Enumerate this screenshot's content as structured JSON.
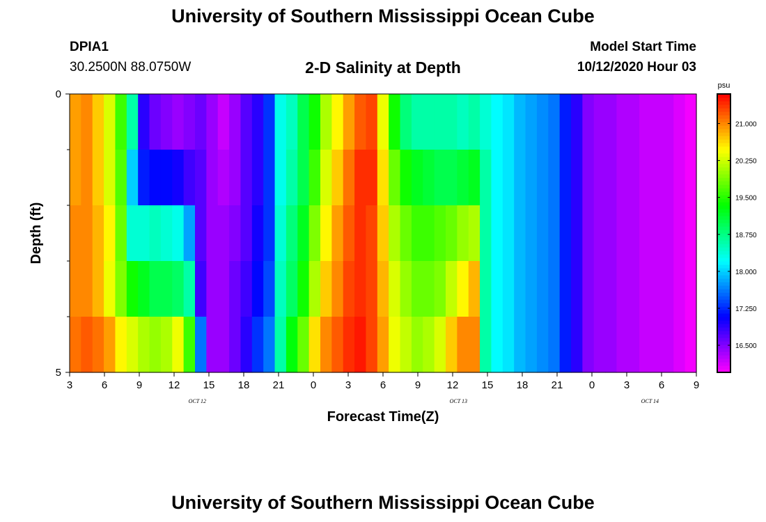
{
  "header": {
    "title": "University of Southern Mississippi Ocean Cube",
    "station_id": "DPIA1",
    "station_coords": "30.2500N 88.0750W",
    "subtitle": "2-D Salinity at Depth",
    "model_start_label": "Model Start Time",
    "model_start_value": "10/12/2020 Hour 03"
  },
  "footer": {
    "title": "University of Southern Mississippi Ocean Cube"
  },
  "chart_data": {
    "type": "heatmap",
    "title": "2-D Salinity at Depth",
    "xlabel": "Forecast Time(Z)",
    "ylabel": "Depth (ft)",
    "x_hours": [
      3,
      4,
      5,
      6,
      7,
      8,
      9,
      10,
      11,
      12,
      13,
      14,
      15,
      16,
      17,
      18,
      19,
      20,
      21,
      22,
      23,
      24,
      25,
      26,
      27,
      28,
      29,
      30,
      31,
      32,
      33,
      34,
      35,
      36,
      37,
      38,
      39,
      40,
      41,
      42,
      43,
      44,
      45,
      46,
      47,
      48,
      49,
      50,
      51,
      52,
      53,
      54,
      55,
      56,
      57
    ],
    "xlim": [
      3,
      57
    ],
    "x_ticks": [
      {
        "hour": 3,
        "label": "3"
      },
      {
        "hour": 6,
        "label": "6"
      },
      {
        "hour": 9,
        "label": "9"
      },
      {
        "hour": 12,
        "label": "12"
      },
      {
        "hour": 15,
        "label": "15"
      },
      {
        "hour": 18,
        "label": "18"
      },
      {
        "hour": 21,
        "label": "21"
      },
      {
        "hour": 24,
        "label": "0"
      },
      {
        "hour": 27,
        "label": "3"
      },
      {
        "hour": 30,
        "label": "6"
      },
      {
        "hour": 33,
        "label": "9"
      },
      {
        "hour": 36,
        "label": "12"
      },
      {
        "hour": 39,
        "label": "15"
      },
      {
        "hour": 42,
        "label": "18"
      },
      {
        "hour": 45,
        "label": "21"
      },
      {
        "hour": 48,
        "label": "0"
      },
      {
        "hour": 51,
        "label": "3"
      },
      {
        "hour": 54,
        "label": "6"
      },
      {
        "hour": 57,
        "label": "9"
      }
    ],
    "date_labels": [
      {
        "hour": 14,
        "label": "OCT 12"
      },
      {
        "hour": 36.5,
        "label": "OCT 13"
      },
      {
        "hour": 53,
        "label": "OCT 14"
      }
    ],
    "ylim": [
      0,
      5
    ],
    "y_tick_labels": [
      {
        "depth": 0,
        "label": "0"
      },
      {
        "depth": 5,
        "label": "5"
      }
    ],
    "y_minor_ticks": [
      1,
      2,
      3,
      4
    ],
    "depth_layers": [
      0.5,
      1.5,
      2.5,
      3.5,
      4.5
    ],
    "values": [
      [
        20.9,
        21.0,
        20.7,
        20.3,
        19.6,
        18.6,
        16.9,
        16.6,
        16.5,
        16.4,
        16.5,
        16.6,
        16.4,
        16.2,
        16.4,
        16.7,
        16.9,
        17.3,
        18.3,
        18.5,
        19.0,
        19.4,
        20.1,
        20.5,
        20.9,
        21.2,
        21.3,
        20.4,
        19.4,
        18.8,
        18.6,
        18.6,
        18.6,
        18.6,
        18.5,
        18.6,
        18.4,
        18.2,
        18.1,
        17.9,
        17.8,
        17.7,
        17.6,
        17.2,
        16.9,
        16.5,
        16.4,
        16.4,
        16.3,
        16.3,
        16.2,
        16.2,
        16.2,
        16.1,
        16.0
      ],
      [
        20.9,
        21.0,
        20.7,
        20.3,
        19.7,
        18.0,
        17.2,
        17.1,
        17.1,
        17.0,
        16.8,
        16.7,
        16.4,
        16.3,
        16.4,
        16.7,
        16.9,
        17.3,
        18.3,
        18.6,
        19.0,
        19.6,
        20.3,
        20.7,
        21.1,
        21.4,
        21.4,
        20.6,
        19.8,
        19.4,
        19.2,
        19.1,
        19.0,
        19.0,
        19.1,
        19.2,
        18.6,
        18.2,
        18.1,
        17.9,
        17.8,
        17.7,
        17.6,
        17.2,
        16.9,
        16.5,
        16.4,
        16.4,
        16.3,
        16.3,
        16.2,
        16.2,
        16.2,
        16.1,
        16.0
      ],
      [
        21.0,
        21.0,
        20.8,
        20.5,
        19.8,
        18.4,
        18.4,
        18.5,
        18.4,
        18.3,
        17.8,
        16.7,
        16.4,
        16.4,
        16.5,
        16.7,
        17.0,
        17.3,
        18.4,
        18.8,
        19.2,
        19.9,
        20.5,
        20.9,
        21.2,
        21.4,
        21.3,
        20.7,
        20.1,
        19.8,
        19.6,
        19.6,
        19.7,
        19.8,
        20.0,
        20.1,
        18.6,
        18.2,
        18.1,
        17.9,
        17.8,
        17.7,
        17.6,
        17.2,
        16.9,
        16.5,
        16.4,
        16.4,
        16.3,
        16.3,
        16.2,
        16.2,
        16.2,
        16.1,
        16.0
      ],
      [
        21.0,
        21.0,
        20.8,
        20.4,
        19.9,
        19.4,
        19.2,
        19.0,
        19.0,
        18.9,
        18.6,
        16.8,
        16.4,
        16.4,
        16.6,
        16.8,
        17.1,
        17.4,
        18.5,
        18.9,
        19.4,
        20.1,
        20.7,
        21.0,
        21.3,
        21.4,
        21.3,
        20.8,
        20.3,
        20.0,
        19.8,
        19.8,
        19.9,
        20.2,
        20.5,
        20.8,
        18.6,
        18.2,
        18.1,
        17.9,
        17.8,
        17.7,
        17.6,
        17.2,
        16.9,
        16.5,
        16.4,
        16.4,
        16.3,
        16.3,
        16.2,
        16.2,
        16.2,
        16.1,
        16.0
      ],
      [
        21.1,
        21.2,
        21.1,
        20.9,
        20.5,
        20.3,
        20.1,
        20.0,
        20.1,
        20.4,
        19.6,
        17.6,
        16.4,
        16.4,
        16.6,
        16.9,
        17.3,
        17.6,
        18.6,
        19.3,
        19.8,
        20.6,
        21.0,
        21.2,
        21.4,
        21.5,
        21.3,
        20.9,
        20.4,
        20.2,
        20.0,
        20.1,
        20.3,
        20.7,
        21.0,
        21.0,
        18.6,
        18.2,
        18.1,
        17.9,
        17.8,
        17.7,
        17.6,
        17.2,
        16.9,
        16.5,
        16.4,
        16.4,
        16.3,
        16.3,
        16.2,
        16.2,
        16.2,
        16.1,
        16.0
      ]
    ],
    "colorbar": {
      "label": "psu",
      "range": [
        15.95,
        21.6
      ],
      "ticks": [
        21.0,
        20.25,
        19.5,
        18.75,
        18.0,
        17.25,
        16.5
      ],
      "tick_labels": [
        "21.000",
        "20.250",
        "19.500",
        "18.750",
        "18.000",
        "17.250",
        "16.500"
      ]
    }
  }
}
